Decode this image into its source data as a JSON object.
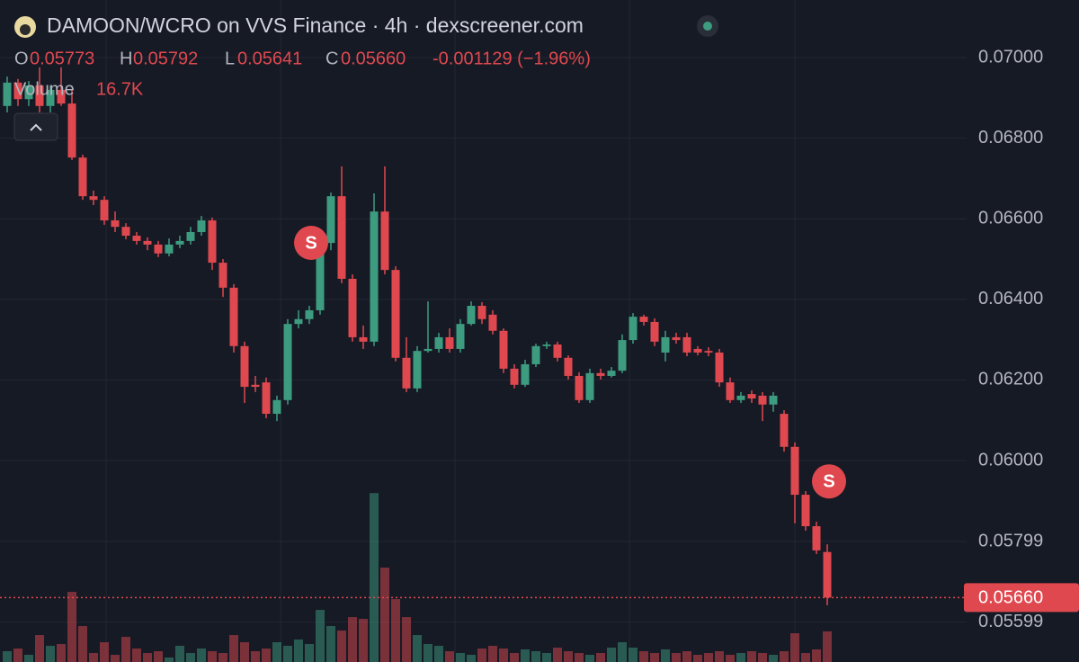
{
  "chart_data": {
    "type": "candlestick",
    "title": "DAMOON/WCRO on VVS Finance · 4h · dexscreener.com",
    "ohlc_legend": [
      {
        "key": "O",
        "value": "0.05773"
      },
      {
        "key": "H",
        "value": "0.05792"
      },
      {
        "key": "L",
        "value": "0.05641"
      },
      {
        "key": "C",
        "value": "0.05660"
      }
    ],
    "change": "-0.001129 (−1.96%)",
    "volume_legend": {
      "name": "Volume",
      "value": "16.7K"
    },
    "up_color": "#3d9c80",
    "down_color": "#e0484f",
    "open": [
      0.0688,
      0.06938,
      0.06897,
      0.06931,
      0.0688,
      0.0692,
      0.06886,
      0.06752,
      0.06656,
      0.06647,
      0.06596,
      0.0658,
      0.06558,
      0.06545,
      0.06536,
      0.06514,
      0.06536,
      0.06545,
      0.06567,
      0.06596,
      0.06491,
      0.06429,
      0.06284,
      0.06188,
      0.06194,
      0.06116,
      0.0615,
      0.06339,
      0.06351,
      0.06373,
      0.0654,
      0.06656,
      0.06451,
      0.06306,
      0.06295,
      0.06618,
      0.06473,
      0.06255,
      0.06179,
      0.06272,
      0.06277,
      0.06306,
      0.06277,
      0.06339,
      0.06384,
      0.06362,
      0.06322,
      0.06228,
      0.06188,
      0.06239,
      0.06284,
      0.06288,
      0.06255,
      0.0621,
      0.0615,
      0.06217,
      0.0621,
      0.06223,
      0.06299,
      0.06357,
      0.06344,
      0.06268,
      0.06306,
      0.06306,
      0.06277,
      0.06272,
      0.06268,
      0.06194,
      0.0615,
      0.06165,
      0.06161,
      0.06139,
      0.06116,
      0.06034,
      0.05915,
      0.05837,
      0.05773
    ],
    "high": [
      0.06953,
      0.06947,
      0.06942,
      0.06976,
      0.06931,
      0.06976,
      0.0692,
      0.06759,
      0.0667,
      0.06656,
      0.06618,
      0.06589,
      0.06567,
      0.06554,
      0.06545,
      0.06551,
      0.06558,
      0.0658,
      0.06607,
      0.06603,
      0.065,
      0.06438,
      0.06295,
      0.0621,
      0.06206,
      0.06161,
      0.06351,
      0.06373,
      0.06384,
      0.06551,
      0.06665,
      0.0673,
      0.06462,
      0.06335,
      0.06663,
      0.0673,
      0.06482,
      0.06306,
      0.06284,
      0.06395,
      0.06317,
      0.06328,
      0.06351,
      0.06395,
      0.06393,
      0.06373,
      0.06328,
      0.06239,
      0.0625,
      0.0629,
      0.06295,
      0.06295,
      0.06261,
      0.06219,
      0.06228,
      0.06228,
      0.06232,
      0.06313,
      0.06366,
      0.06362,
      0.06353,
      0.06322,
      0.06317,
      0.06317,
      0.06284,
      0.06281,
      0.06277,
      0.06206,
      0.0617,
      0.06174,
      0.0617,
      0.0617,
      0.06125,
      0.06045,
      0.05924,
      0.05848,
      0.05792
    ],
    "low": [
      0.06864,
      0.0688,
      0.0688,
      0.06864,
      0.06864,
      0.0688,
      0.06746,
      0.06647,
      0.06634,
      0.06585,
      0.06567,
      0.06549,
      0.06536,
      0.06522,
      0.06505,
      0.06507,
      0.06527,
      0.06536,
      0.06558,
      0.06473,
      0.06406,
      0.06268,
      0.06143,
      0.0617,
      0.06105,
      0.06098,
      0.06139,
      0.06328,
      0.06339,
      0.06362,
      0.06522,
      0.0644,
      0.06295,
      0.06277,
      0.06284,
      0.06462,
      0.06246,
      0.0617,
      0.0617,
      0.06268,
      0.06268,
      0.06268,
      0.06268,
      0.06335,
      0.06339,
      0.06313,
      0.06217,
      0.06179,
      0.06183,
      0.06232,
      0.06277,
      0.06246,
      0.06201,
      0.06143,
      0.06143,
      0.06201,
      0.06206,
      0.06217,
      0.0629,
      0.06335,
      0.06284,
      0.06246,
      0.0629,
      0.06259,
      0.06261,
      0.06259,
      0.06183,
      0.06143,
      0.06143,
      0.06143,
      0.06098,
      0.06121,
      0.06022,
      0.05844,
      0.05826,
      0.05768,
      0.05641
    ],
    "close": [
      0.06938,
      0.06897,
      0.06931,
      0.0688,
      0.0692,
      0.06886,
      0.06752,
      0.06656,
      0.06647,
      0.06596,
      0.0658,
      0.06558,
      0.06545,
      0.06536,
      0.06514,
      0.06536,
      0.06545,
      0.06567,
      0.06596,
      0.06491,
      0.06429,
      0.06284,
      0.06183,
      0.06183,
      0.06116,
      0.0615,
      0.06339,
      0.06351,
      0.06373,
      0.0654,
      0.06656,
      0.06451,
      0.06306,
      0.06295,
      0.06618,
      0.06473,
      0.06255,
      0.06179,
      0.06272,
      0.06277,
      0.06306,
      0.06277,
      0.06339,
      0.06384,
      0.06351,
      0.06322,
      0.06228,
      0.06188,
      0.06239,
      0.06284,
      0.06288,
      0.06255,
      0.0621,
      0.0615,
      0.06217,
      0.0621,
      0.06223,
      0.06299,
      0.06357,
      0.06344,
      0.06295,
      0.06306,
      0.06299,
      0.06268,
      0.06268,
      0.06268,
      0.06194,
      0.0615,
      0.06161,
      0.06154,
      0.06139,
      0.06161,
      0.06034,
      0.05915,
      0.05837,
      0.05777,
      0.0566
    ],
    "volume": [
      5880,
      7350,
      3920,
      14700,
      8820,
      9800,
      38220,
      19600,
      4900,
      10780,
      3920,
      13720,
      7350,
      4900,
      5880,
      2450,
      8820,
      4900,
      7350,
      5880,
      4900,
      14700,
      10780,
      5880,
      7350,
      10780,
      8820,
      12250,
      9800,
      28420,
      19600,
      17150,
      24500,
      23520,
      92120,
      51450,
      34300,
      24500,
      14700,
      9800,
      8820,
      5880,
      4900,
      3920,
      7350,
      8820,
      7350,
      4900,
      6860,
      5880,
      4900,
      7840,
      5880,
      4900,
      3920,
      4900,
      7840,
      10780,
      7840,
      5880,
      4900,
      6860,
      4900,
      5880,
      3920,
      4900,
      5880,
      3920,
      4900,
      5880,
      4900,
      3920,
      5880,
      15680,
      4900,
      6860,
      16700
    ],
    "ylim": [
      0.055,
      0.07143
    ],
    "volume_ylim": [
      0,
      130000
    ],
    "yticks": [
      {
        "value": 0.05599,
        "label": "0.05599"
      },
      {
        "value": 0.05799,
        "label": "0.05799"
      },
      {
        "value": 0.06,
        "label": "0.06000"
      },
      {
        "value": 0.062,
        "label": "0.06200"
      },
      {
        "value": 0.064,
        "label": "0.06400"
      },
      {
        "value": 0.066,
        "label": "0.06600"
      },
      {
        "value": 0.068,
        "label": "0.06800"
      },
      {
        "value": 0.07,
        "label": "0.07000"
      }
    ],
    "last_price": {
      "value": 0.0566,
      "label": "0.05660"
    },
    "markers": [
      {
        "label": "S",
        "index": 28
      },
      {
        "label": "S",
        "index": 76
      }
    ],
    "grid": true
  }
}
